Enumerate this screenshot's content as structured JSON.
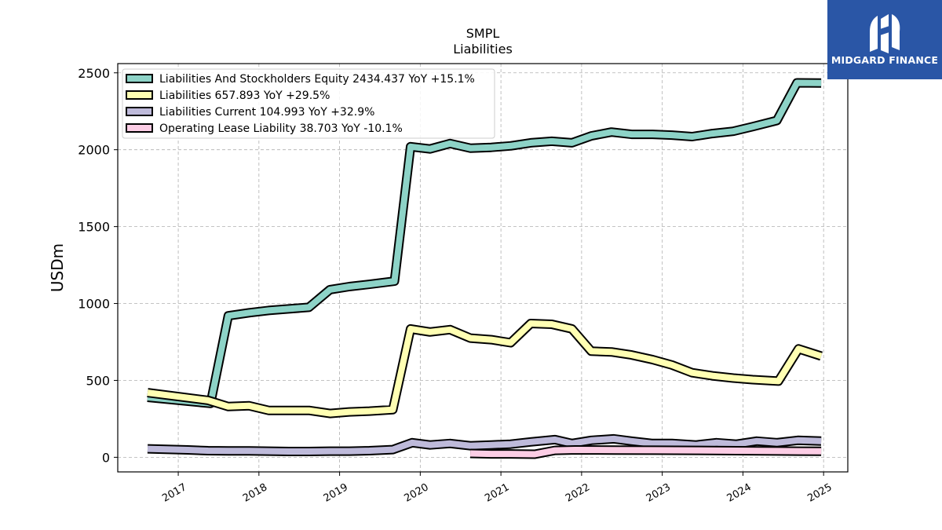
{
  "brand": {
    "name": "MIDGARD FINANCE"
  },
  "chart_data": {
    "type": "line",
    "title": "SMPL",
    "subtitle": "Liabilities",
    "xlabel": "",
    "ylabel": "USDm",
    "xlim": [
      2016.25,
      2025.3
    ],
    "ylim": [
      -95,
      2560
    ],
    "yticks": [
      0,
      500,
      1000,
      1500,
      2000,
      2500
    ],
    "xticks": [
      2017,
      2018,
      2019,
      2020,
      2021,
      2022,
      2023,
      2024,
      2025
    ],
    "grid": true,
    "legend_position": "top-left",
    "series": [
      {
        "name": "Liabilities And Stockholders Equity",
        "legend_label": "Liabilities And Stockholders Equity  2434.437 YoY +15.1%",
        "color": "#8dd3c7",
        "x": [
          2016.62,
          2017.4,
          2017.62,
          2017.88,
          2018.12,
          2018.37,
          2018.62,
          2018.88,
          2019.12,
          2019.37,
          2019.68,
          2019.88,
          2020.12,
          2020.37,
          2020.62,
          2020.88,
          2021.12,
          2021.37,
          2021.63,
          2021.88,
          2022.12,
          2022.37,
          2022.62,
          2022.88,
          2023.12,
          2023.37,
          2023.62,
          2023.88,
          2024.12,
          2024.42,
          2024.67,
          2024.97
        ],
        "values": [
          390,
          350,
          920,
          940,
          955,
          965,
          975,
          1090,
          1110,
          1125,
          1145,
          2020,
          2005,
          2040,
          2010,
          2015,
          2025,
          2045,
          2055,
          2045,
          2090,
          2115,
          2100,
          2100,
          2095,
          2085,
          2105,
          2120,
          2150,
          2190,
          2435,
          2434
        ]
      },
      {
        "name": "Liabilities",
        "legend_label": "Liabilities  657.893 YoY +29.5%",
        "color": "#ffffb3",
        "x": [
          2016.62,
          2017.37,
          2017.62,
          2017.88,
          2018.12,
          2018.37,
          2018.62,
          2018.88,
          2019.12,
          2019.37,
          2019.66,
          2019.88,
          2020.12,
          2020.37,
          2020.62,
          2020.88,
          2021.12,
          2021.37,
          2021.63,
          2021.88,
          2022.12,
          2022.37,
          2022.62,
          2022.88,
          2023.12,
          2023.37,
          2023.62,
          2023.88,
          2024.12,
          2024.44,
          2024.69,
          2024.97
        ],
        "values": [
          420,
          370,
          330,
          335,
          305,
          305,
          305,
          285,
          295,
          300,
          310,
          835,
          815,
          830,
          775,
          765,
          745,
          870,
          865,
          835,
          690,
          685,
          665,
          635,
          600,
          550,
          530,
          515,
          505,
          495,
          705,
          658
        ]
      },
      {
        "name": "Liabilities Current",
        "legend_label": "Liabilities Current  104.993 YoY +32.9%",
        "color": "#bebada",
        "x": [
          2016.62,
          2017.12,
          2017.37,
          2017.62,
          2017.88,
          2018.12,
          2018.37,
          2018.62,
          2018.88,
          2019.12,
          2019.37,
          2019.66,
          2019.9,
          2020.12,
          2020.37,
          2020.62,
          2020.88,
          2021.12,
          2021.37,
          2021.67,
          2021.88,
          2022.12,
          2022.4,
          2022.62,
          2022.88,
          2023.12,
          2023.42,
          2023.67,
          2023.92,
          2024.17,
          2024.42,
          2024.68,
          2024.97
        ],
        "values": [
          55,
          48,
          43,
          42,
          42,
          40,
          38,
          38,
          40,
          40,
          43,
          50,
          95,
          80,
          90,
          75,
          80,
          85,
          100,
          115,
          90,
          110,
          120,
          105,
          90,
          90,
          80,
          95,
          85,
          105,
          95,
          110,
          105
        ]
      },
      {
        "name": "Operating Lease Liability",
        "legend_label": "Operating Lease Liability  38.703 YoY -10.1%",
        "color": "#fccde5",
        "x": [
          2020.62,
          2020.88,
          2021.12,
          2021.42,
          2021.67,
          2021.92,
          2022.42,
          2022.92,
          2023.42,
          2023.92,
          2024.42,
          2024.97
        ],
        "values": [
          25,
          22,
          22,
          20,
          45,
          48,
          47,
          46,
          45,
          43,
          41,
          39
        ]
      }
    ]
  }
}
